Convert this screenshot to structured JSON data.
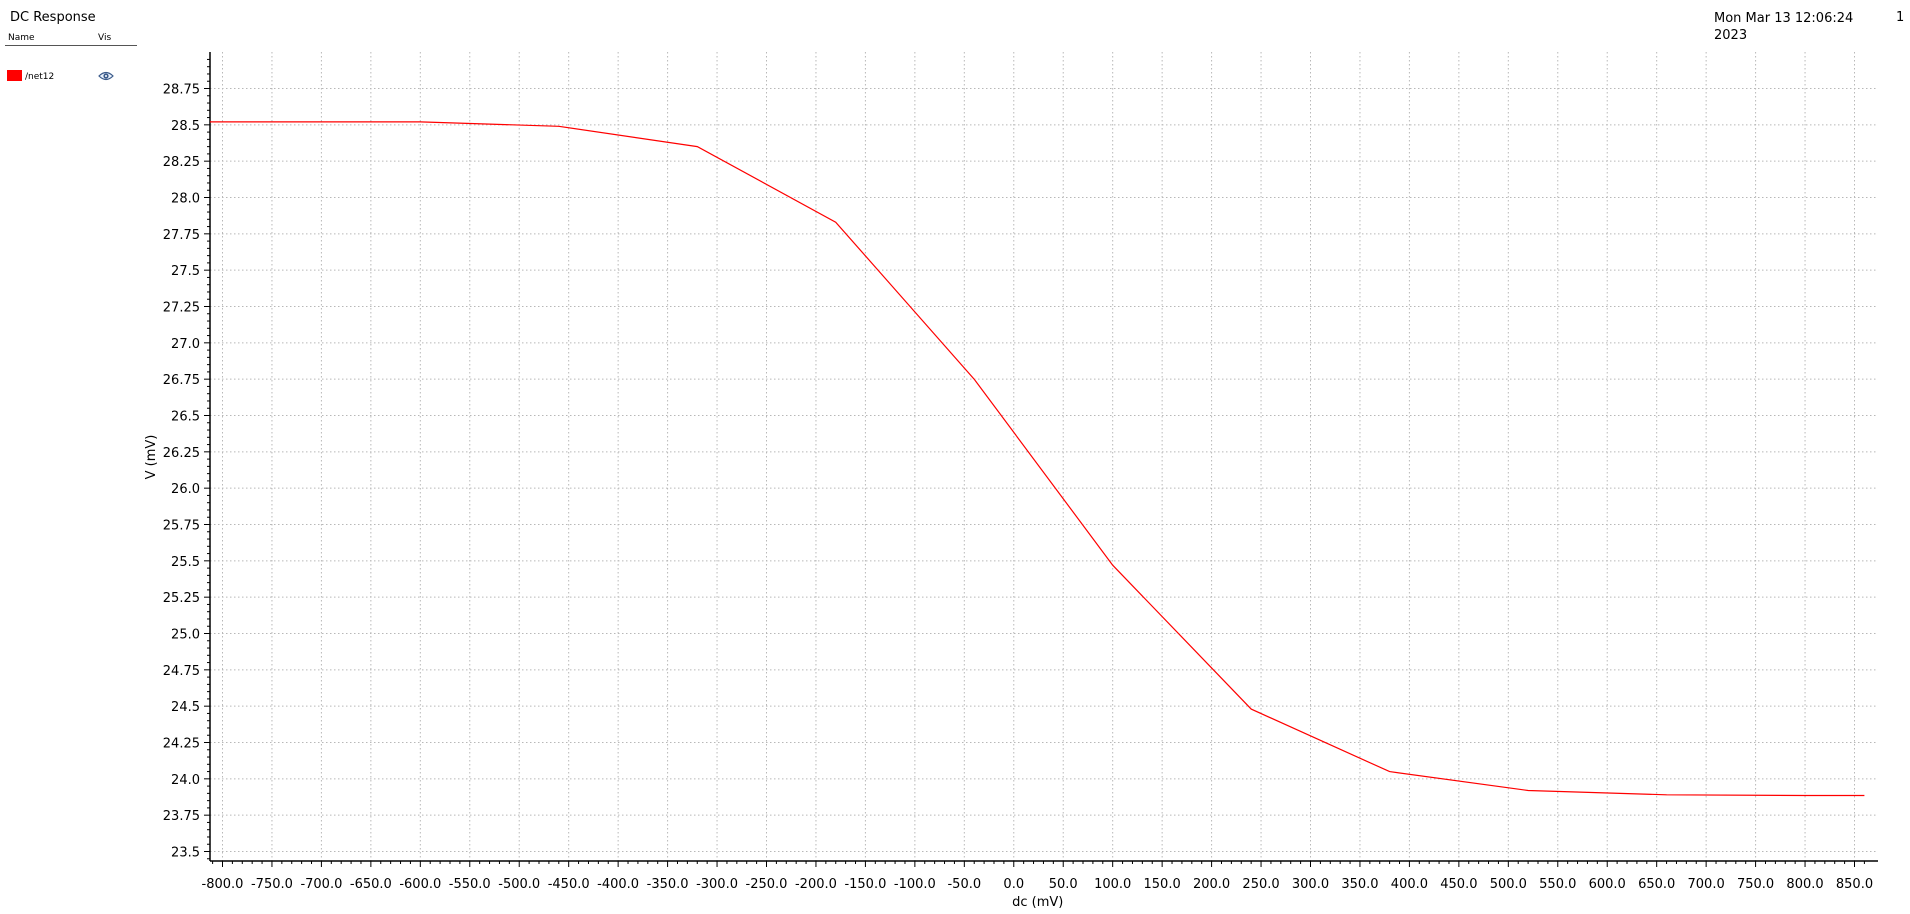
{
  "window": {
    "title": "DC Response",
    "timestamp_line1": "Mon Mar 13 12:06:24",
    "timestamp_line2": "2023",
    "page_number": "1"
  },
  "legend": {
    "col_name": "Name",
    "col_vis": "Vis",
    "items": [
      {
        "name": "/net12",
        "color": "#ff0000",
        "visible": true,
        "icon": "eye-icon"
      }
    ]
  },
  "chart_data": {
    "type": "line",
    "xlabel": "dc (mV)",
    "ylabel": "V (mV)",
    "xlim": [
      -815,
      860
    ],
    "ylim": [
      23.42,
      28.96
    ],
    "x_ticks": [
      -800,
      -750,
      -700,
      -650,
      -600,
      -550,
      -500,
      -450,
      -400,
      -350,
      -300,
      -250,
      -200,
      -150,
      -100,
      -50,
      0,
      50,
      100,
      150,
      200,
      250,
      300,
      350,
      400,
      450,
      500,
      550,
      600,
      650,
      700,
      750,
      800,
      850
    ],
    "x_tick_labels": [
      "-800.0",
      "-750.0",
      "-700.0",
      "-650.0",
      "-600.0",
      "-550.0",
      "-500.0",
      "-450.0",
      "-400.0",
      "-350.0",
      "-300.0",
      "-250.0",
      "-200.0",
      "-150.0",
      "-100.0",
      "-50.0",
      "0.0",
      "50.0",
      "100.0",
      "150.0",
      "200.0",
      "250.0",
      "300.0",
      "350.0",
      "400.0",
      "450.0",
      "500.0",
      "550.0",
      "600.0",
      "650.0",
      "700.0",
      "750.0",
      "800.0",
      "850.0"
    ],
    "y_ticks": [
      23.5,
      23.75,
      24.0,
      24.25,
      24.5,
      24.75,
      25.0,
      25.25,
      25.5,
      25.75,
      26.0,
      26.25,
      26.5,
      26.75,
      27.0,
      27.25,
      27.5,
      27.75,
      28.0,
      28.25,
      28.5,
      28.75
    ],
    "y_tick_labels": [
      "23.5",
      "23.75",
      "24.0",
      "24.25",
      "24.5",
      "24.75",
      "25.0",
      "25.25",
      "25.5",
      "25.75",
      "26.0",
      "26.25",
      "26.5",
      "26.75",
      "27.0",
      "27.25",
      "27.5",
      "27.75",
      "28.0",
      "28.25",
      "28.5",
      "28.75"
    ],
    "grid": true,
    "series": [
      {
        "name": "/net12",
        "color": "#ff0000",
        "x": [
          -820,
          -600,
          -460,
          -320,
          -180,
          -40,
          100,
          240,
          380,
          520,
          660,
          800,
          860
        ],
        "y": [
          28.52,
          28.52,
          28.49,
          28.35,
          27.83,
          26.75,
          25.47,
          24.48,
          24.05,
          23.92,
          23.89,
          23.885,
          23.885
        ]
      }
    ]
  }
}
